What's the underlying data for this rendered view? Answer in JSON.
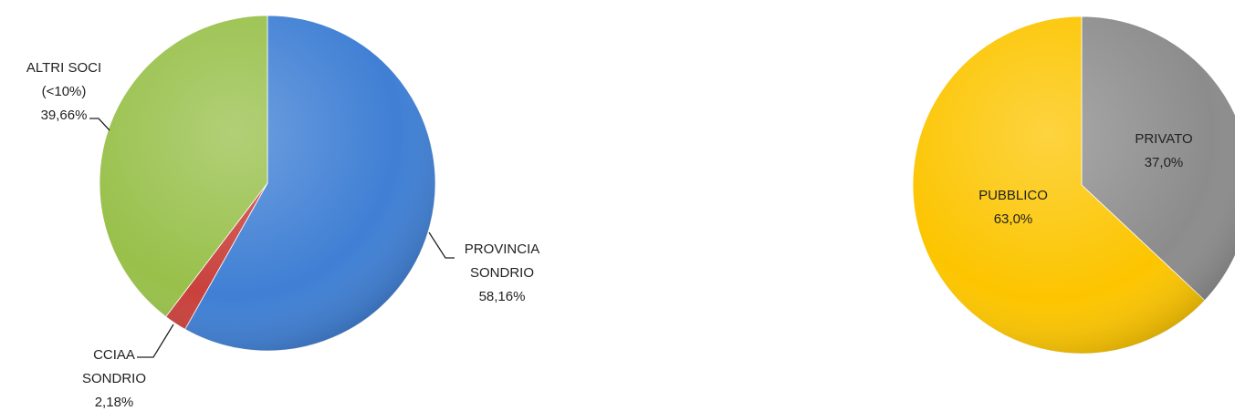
{
  "chart_data": [
    {
      "type": "pie",
      "categories": [
        "PROVINCIA\nSONDRIO",
        "CCIAA\nSONDRIO",
        "ALTRI SOCI\n(<10%)"
      ],
      "values": [
        58.16,
        2.18,
        39.66
      ],
      "value_labels": [
        "58,16%",
        "2,18%",
        "39,66%"
      ],
      "colors": [
        "#3f7fd4",
        "#c9413c",
        "#98c04a"
      ]
    },
    {
      "type": "pie",
      "categories": [
        "PRIVATO",
        "PUBBLICO"
      ],
      "values": [
        37.0,
        63.0
      ],
      "value_labels": [
        "37,0%",
        "63,0%"
      ],
      "colors": [
        "#8c8c8c",
        "#fcc500"
      ]
    }
  ]
}
